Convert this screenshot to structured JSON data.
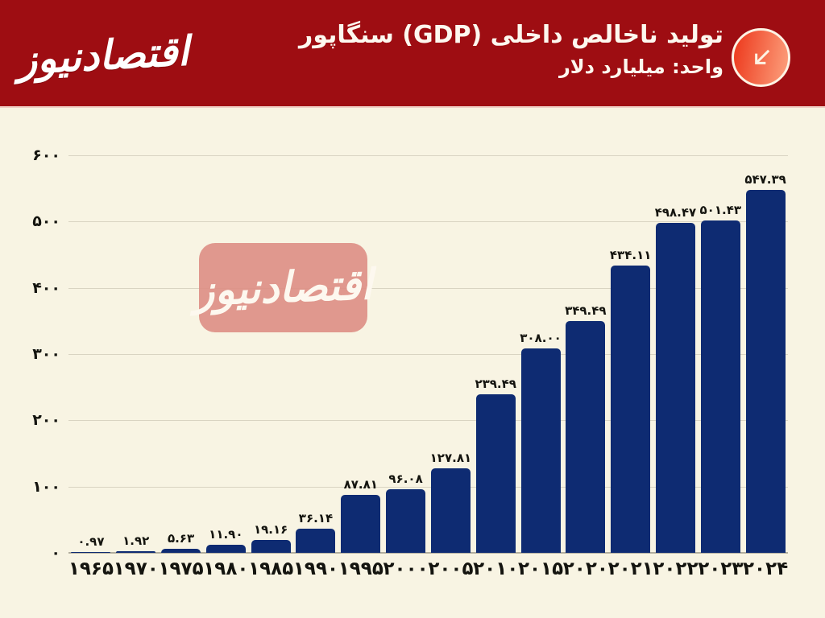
{
  "header": {
    "logo_text": "اقتصادنیوز",
    "title": "تولید ناخالص داخلی (GDP) سنگاپور",
    "subtitle": "واحد: میلیارد دلار",
    "background_color": "#9e0d12",
    "icon": "arrow-down-left-icon",
    "icon_gradient": [
      "#ee4124",
      "#fc9c79"
    ]
  },
  "watermark": {
    "text": "اقتصادنیوز",
    "background_color": "#dd8e84"
  },
  "chart_data": {
    "type": "bar",
    "title": "تولید ناخالص داخلی (GDP) سنگاپور",
    "subtitle": "واحد: میلیارد دلار",
    "xlabel": "",
    "ylabel": "میلیارد دلار",
    "categories": [
      "۱۹۶۵",
      "۱۹۷۰",
      "۱۹۷۵",
      "۱۹۸۰",
      "۱۹۸۵",
      "۱۹۹۰",
      "۱۹۹۵",
      "۲۰۰۰",
      "۲۰۰۵",
      "۲۰۱۰",
      "۲۰۱۵",
      "۲۰۲۰",
      "۲۰۲۱",
      "۲۰۲۲",
      "۲۰۲۳",
      "۲۰۲۴"
    ],
    "categories_western": [
      1965,
      1970,
      1975,
      1980,
      1985,
      1990,
      1995,
      2000,
      2005,
      2010,
      2015,
      2020,
      2021,
      2022,
      2023,
      2024
    ],
    "values": [
      0.97,
      1.92,
      5.63,
      11.9,
      19.16,
      36.14,
      87.81,
      96.08,
      127.81,
      239.49,
      308.0,
      349.49,
      434.11,
      498.47,
      501.43,
      547.39
    ],
    "value_labels": [
      "۰.۹۷",
      "۱.۹۲",
      "۵.۶۳",
      "۱۱.۹۰",
      "۱۹.۱۶",
      "۳۶.۱۴",
      "۸۷.۸۱",
      "۹۶.۰۸",
      "۱۲۷.۸۱",
      "۲۳۹.۴۹",
      "۳۰۸.۰۰",
      "۳۴۹.۴۹",
      "۴۳۴.۱۱",
      "۴۹۸.۴۷",
      "۵۰۱.۴۳",
      "۵۴۷.۳۹"
    ],
    "y_ticks": [
      0,
      100,
      200,
      300,
      400,
      500,
      600
    ],
    "y_tick_labels": [
      "۰",
      "۱۰۰",
      "۲۰۰",
      "۳۰۰",
      "۴۰۰",
      "۵۰۰",
      "۶۰۰"
    ],
    "ylim": [
      0,
      600
    ],
    "grid": true,
    "legend": false,
    "bar_color": "#0e2b72",
    "background_color": "#f8f4e3",
    "gridline_color": "#d9d4c2",
    "axis_color": "#b2ae9e",
    "label_color": "#14140f"
  }
}
